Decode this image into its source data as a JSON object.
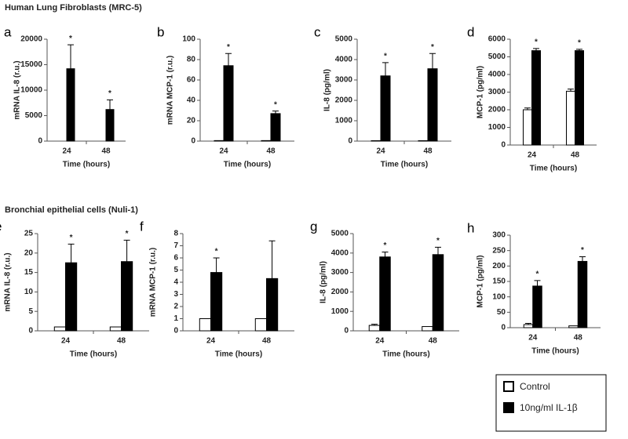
{
  "sections": [
    {
      "title": "Human Lung Fibroblasts (MRC-5)"
    },
    {
      "title": "Bronchial epithelial cells (Nuli-1)"
    }
  ],
  "chart_data": [
    {
      "type": "bar",
      "panel": "a",
      "ylabel": "mRNA IL-8 (r.u.)",
      "xlabel": "Time (hours)",
      "categories": [
        "24",
        "48"
      ],
      "series": [
        {
          "name": "Control",
          "color": "#ffffff",
          "values": [
            0,
            0
          ],
          "errors": [
            null,
            null
          ]
        },
        {
          "name": "10ng/ml IL-1β",
          "color": "#000000",
          "values": [
            14200,
            6200
          ],
          "errors": [
            4700,
            1900
          ],
          "annotations": [
            "*",
            "*"
          ]
        }
      ],
      "ylim": [
        0,
        20000
      ],
      "yticks": [
        0,
        5000,
        10000,
        15000,
        20000
      ]
    },
    {
      "type": "bar",
      "panel": "b",
      "ylabel": "mRNA MCP-1 (r.u.)",
      "xlabel": "Time (hours)",
      "categories": [
        "24",
        "48"
      ],
      "series": [
        {
          "name": "Control",
          "color": "#ffffff",
          "values": [
            0.5,
            0.5
          ],
          "errors": [
            null,
            null
          ]
        },
        {
          "name": "10ng/ml IL-1β",
          "color": "#000000",
          "values": [
            74,
            27
          ],
          "errors": [
            12,
            2.5
          ],
          "annotations": [
            "*",
            "*"
          ]
        }
      ],
      "ylim": [
        0,
        100
      ],
      "yticks": [
        0,
        20,
        40,
        60,
        80,
        100
      ]
    },
    {
      "type": "bar",
      "panel": "c",
      "ylabel": "IL-8 (pg/ml)",
      "xlabel": "Time (hours)",
      "categories": [
        "24",
        "48"
      ],
      "series": [
        {
          "name": "Control",
          "color": "#ffffff",
          "values": [
            20,
            20
          ],
          "errors": [
            null,
            null
          ]
        },
        {
          "name": "10ng/ml IL-1β",
          "color": "#000000",
          "values": [
            3200,
            3550
          ],
          "errors": [
            650,
            750
          ],
          "annotations": [
            "*",
            "*"
          ]
        }
      ],
      "ylim": [
        0,
        5000
      ],
      "yticks": [
        0,
        1000,
        2000,
        3000,
        4000,
        5000
      ]
    },
    {
      "type": "bar",
      "panel": "d",
      "ylabel": "MCP-1 (pg/ml)",
      "xlabel": "Time (hours)",
      "categories": [
        "24",
        "48"
      ],
      "series": [
        {
          "name": "Control",
          "color": "#ffffff",
          "values": [
            2000,
            3050
          ],
          "errors": [
            100,
            120
          ]
        },
        {
          "name": "10ng/ml IL-1β",
          "color": "#000000",
          "values": [
            5350,
            5350
          ],
          "errors": [
            120,
            80
          ],
          "annotations": [
            "*",
            "*"
          ]
        }
      ],
      "ylim": [
        0,
        6000
      ],
      "yticks": [
        0,
        1000,
        2000,
        3000,
        4000,
        5000,
        6000
      ]
    },
    {
      "type": "bar",
      "panel": "e",
      "ylabel": "mRNA IL-8 (r.u.)",
      "xlabel": "Time (hours)",
      "categories": [
        "24",
        "48"
      ],
      "series": [
        {
          "name": "Control",
          "color": "#ffffff",
          "values": [
            1,
            1
          ],
          "errors": [
            null,
            null
          ]
        },
        {
          "name": "10ng/ml IL-1β",
          "color": "#000000",
          "values": [
            17.5,
            17.8
          ],
          "errors": [
            4.8,
            5.5
          ],
          "annotations": [
            "*",
            "*"
          ]
        }
      ],
      "ylim": [
        0,
        25
      ],
      "yticks": [
        0,
        5,
        10,
        15,
        20,
        25
      ]
    },
    {
      "type": "bar",
      "panel": "f",
      "ylabel": "mRNA MCP-1 (r.u.)",
      "xlabel": "Time (hours)",
      "categories": [
        "24",
        "48"
      ],
      "series": [
        {
          "name": "Control",
          "color": "#ffffff",
          "values": [
            1,
            1
          ],
          "errors": [
            null,
            null
          ]
        },
        {
          "name": "10ng/ml IL-1β",
          "color": "#000000",
          "values": [
            4.8,
            4.3
          ],
          "errors": [
            1.2,
            3.1
          ],
          "annotations": [
            "*",
            null
          ]
        }
      ],
      "ylim": [
        0,
        8
      ],
      "yticks": [
        0,
        1,
        2,
        3,
        4,
        5,
        6,
        7,
        8
      ]
    },
    {
      "type": "bar",
      "panel": "g",
      "ylabel": "IL-8 (pg/ml)",
      "xlabel": "Time (hours)",
      "categories": [
        "24",
        "48"
      ],
      "series": [
        {
          "name": "Control",
          "color": "#ffffff",
          "values": [
            280,
            220
          ],
          "errors": [
            60,
            null
          ]
        },
        {
          "name": "10ng/ml IL-1β",
          "color": "#000000",
          "values": [
            3800,
            3920
          ],
          "errors": [
            250,
            380
          ],
          "annotations": [
            "*",
            "*"
          ]
        }
      ],
      "ylim": [
        0,
        5000
      ],
      "yticks": [
        0,
        1000,
        2000,
        3000,
        4000,
        5000
      ]
    },
    {
      "type": "bar",
      "panel": "h",
      "ylabel": "MCP-1 (pg/ml)",
      "xlabel": "Time (hours)",
      "categories": [
        "24",
        "48"
      ],
      "series": [
        {
          "name": "Control",
          "color": "#ffffff",
          "values": [
            10,
            6
          ],
          "errors": [
            4,
            null
          ]
        },
        {
          "name": "10ng/ml IL-1β",
          "color": "#000000",
          "values": [
            135,
            215
          ],
          "errors": [
            18,
            15
          ],
          "annotations": [
            "*",
            "*"
          ]
        }
      ],
      "ylim": [
        0,
        300
      ],
      "yticks": [
        0,
        50,
        100,
        150,
        200,
        250,
        300
      ]
    }
  ]
}
